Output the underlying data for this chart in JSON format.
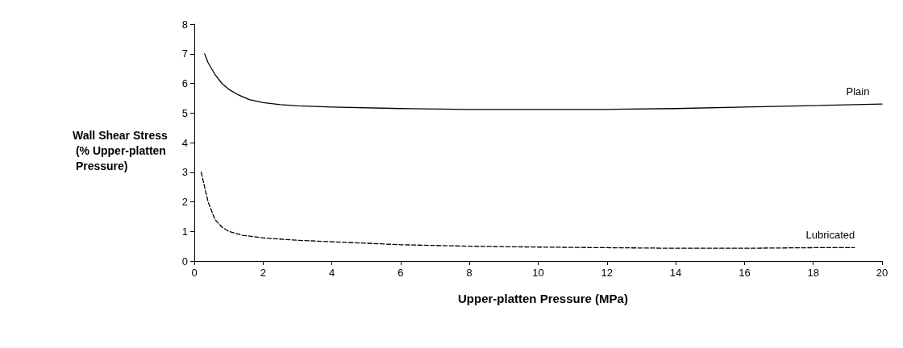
{
  "chart_data": {
    "type": "line",
    "xlabel": "Upper-platten Pressure (MPa)",
    "ylabel": "Wall Shear Stress (% Upper-platten Pressure)",
    "xlim": [
      0,
      20
    ],
    "xticks": [
      0,
      2,
      4,
      6,
      8,
      10,
      12,
      14,
      16,
      18,
      20
    ],
    "ylim": [
      0,
      8
    ],
    "yticks": [
      0,
      1,
      2,
      3,
      4,
      5,
      6,
      7,
      8
    ],
    "grid": false,
    "legend": false,
    "marker": "none",
    "series": [
      {
        "name": "Plain",
        "color": "#000000",
        "line_style": "solid",
        "x": [
          0.3,
          0.4,
          0.6,
          0.8,
          1.0,
          1.3,
          1.6,
          2,
          2.5,
          3,
          4,
          6,
          8,
          10,
          12,
          14,
          16,
          18,
          20
        ],
        "values": [
          7.0,
          6.7,
          6.3,
          6.0,
          5.8,
          5.6,
          5.45,
          5.35,
          5.28,
          5.24,
          5.2,
          5.15,
          5.12,
          5.12,
          5.12,
          5.15,
          5.2,
          5.25,
          5.3
        ]
      },
      {
        "name": "Lubricated",
        "color": "#000000",
        "line_style": "dashed",
        "x": [
          0.2,
          0.3,
          0.4,
          0.6,
          0.8,
          1.0,
          1.4,
          2,
          3,
          4,
          6,
          8,
          10,
          12,
          14,
          16,
          18,
          19.2
        ],
        "values": [
          3.0,
          2.5,
          2.0,
          1.4,
          1.15,
          1.0,
          0.87,
          0.78,
          0.7,
          0.65,
          0.55,
          0.5,
          0.47,
          0.45,
          0.43,
          0.43,
          0.45,
          0.45
        ]
      }
    ]
  }
}
